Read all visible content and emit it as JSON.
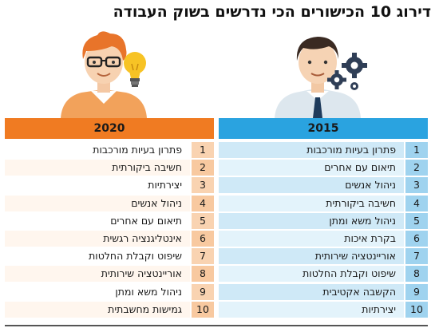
{
  "title": "דירוג 10 הכישורים הכי נדרשים בשוק העבודה",
  "columns": {
    "left": {
      "year": "2020",
      "items": [
        {
          "rank": "1",
          "label": "פתרון בעיות מורכבות"
        },
        {
          "rank": "2",
          "label": "חשיבה ביקורתית"
        },
        {
          "rank": "3",
          "label": "יצירתיות"
        },
        {
          "rank": "4",
          "label": "ניהול אנשים"
        },
        {
          "rank": "5",
          "label": "תיאום עם אחרים"
        },
        {
          "rank": "6",
          "label": "אינטליגנציה רגשית"
        },
        {
          "rank": "7",
          "label": "שיפוט וקבלת החלטות"
        },
        {
          "rank": "8",
          "label": "אוריינטציה שירותית"
        },
        {
          "rank": "9",
          "label": "ניהול משא ומתן"
        },
        {
          "rank": "10",
          "label": "גמישות מחשבתית"
        }
      ]
    },
    "right": {
      "year": "2015",
      "items": [
        {
          "rank": "1",
          "label": "פתרון בעיות מורכבות"
        },
        {
          "rank": "2",
          "label": "תיאום עם אחרים"
        },
        {
          "rank": "3",
          "label": "ניהול אנשים"
        },
        {
          "rank": "4",
          "label": "חשיבה ביקורתית"
        },
        {
          "rank": "5",
          "label": "ניהול משא ומתן"
        },
        {
          "rank": "6",
          "label": "בקרת איכות"
        },
        {
          "rank": "7",
          "label": "אוריינטציה שירותית"
        },
        {
          "rank": "8",
          "label": "שיפוט וקבלת החלטות"
        },
        {
          "rank": "9",
          "label": "הקשבה אקטיבית"
        },
        {
          "rank": "10",
          "label": "יצירתיות"
        }
      ]
    }
  },
  "colors": {
    "accent_2020": "#f07b22",
    "accent_2015": "#2aa3e0"
  },
  "illustrations": {
    "left": [
      "man-with-glasses-icon",
      "lightbulb-icon"
    ],
    "right": [
      "man-with-tie-icon",
      "gears-icon"
    ]
  }
}
